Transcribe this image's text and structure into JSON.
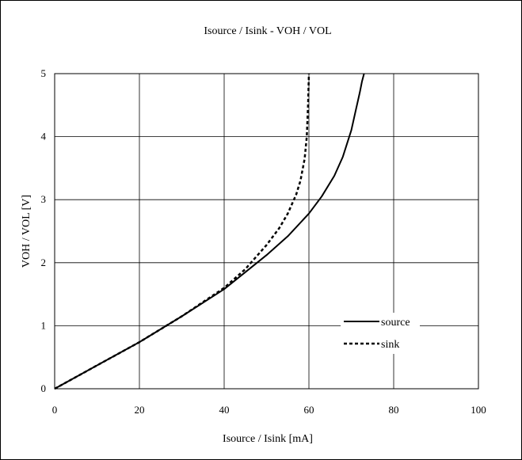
{
  "chart_data": {
    "type": "line",
    "title": "Isource / Isink - VOH / VOL",
    "xlabel": "Isource / Isink [mA]",
    "ylabel": "VOH / VOL [V]",
    "xlim": [
      0,
      100
    ],
    "ylim": [
      0,
      5
    ],
    "xticks": [
      0,
      20,
      40,
      60,
      80,
      100
    ],
    "yticks": [
      0,
      1,
      2,
      3,
      4,
      5
    ],
    "grid": true,
    "legend_position": "bottom-right",
    "series": [
      {
        "name": "source",
        "style": "solid",
        "color": "#000000",
        "x": [
          0,
          10,
          20,
          30,
          40,
          45,
          50,
          55,
          60,
          63,
          66,
          68,
          70,
          71,
          72,
          72.5,
          73
        ],
        "y": [
          0,
          0.37,
          0.74,
          1.15,
          1.58,
          1.85,
          2.12,
          2.42,
          2.78,
          3.05,
          3.38,
          3.68,
          4.1,
          4.4,
          4.7,
          4.87,
          5.0
        ]
      },
      {
        "name": "sink",
        "style": "dashed",
        "color": "#000000",
        "x": [
          0,
          10,
          20,
          30,
          40,
          45,
          50,
          53,
          55,
          57,
          58,
          59,
          59.5,
          59.8,
          60
        ],
        "y": [
          0,
          0.37,
          0.74,
          1.15,
          1.6,
          1.9,
          2.28,
          2.55,
          2.78,
          3.08,
          3.3,
          3.65,
          4.0,
          4.5,
          5.0
        ]
      }
    ]
  }
}
